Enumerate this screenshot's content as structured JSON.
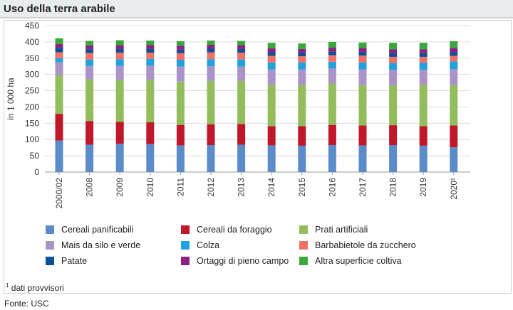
{
  "title": "Uso della terra arabile",
  "footnote": "dati provvisori",
  "footnote_mark": "1",
  "source": "Fonte: USC",
  "chart_data": {
    "type": "bar",
    "stacked": true,
    "ylabel": "in 1 000 ha",
    "ylim": [
      0,
      450
    ],
    "yticks": [
      0,
      50,
      100,
      150,
      200,
      250,
      300,
      350,
      400,
      450
    ],
    "grid": true,
    "categories": [
      "2000/02",
      "2008",
      "2009",
      "2010",
      "2011",
      "2012",
      "2013",
      "2014",
      "2015",
      "2016",
      "2017",
      "2018",
      "2019",
      "2020¹"
    ],
    "series": [
      {
        "name": "Cereali panificabili",
        "color": "#5b8bc9",
        "values": [
          97,
          84,
          87,
          86,
          82,
          83,
          84,
          82,
          81,
          83,
          82,
          83,
          81,
          76
        ]
      },
      {
        "name": "Cereali da foraggio",
        "color": "#c0182a",
        "values": [
          82,
          73,
          67,
          67,
          63,
          64,
          64,
          59,
          60,
          62,
          61,
          61,
          60,
          67
        ]
      },
      {
        "name": "Prati artificiali",
        "color": "#93bd5c",
        "values": [
          118,
          128,
          129,
          130,
          133,
          133,
          132,
          127,
          126,
          127,
          124,
          123,
          127,
          124
        ]
      },
      {
        "name": "Mais da silo e verde",
        "color": "#a993c7",
        "values": [
          40,
          41,
          43,
          44,
          46,
          45,
          44,
          47,
          48,
          46,
          48,
          47,
          46,
          49
        ]
      },
      {
        "name": "Colza",
        "color": "#22a1dc",
        "values": [
          13,
          20,
          21,
          21,
          21,
          22,
          22,
          22,
          22,
          21,
          22,
          21,
          22,
          24
        ]
      },
      {
        "name": "Barbabietole da zucchero",
        "color": "#ef7167",
        "values": [
          18,
          20,
          20,
          19,
          20,
          21,
          21,
          20,
          19,
          20,
          21,
          19,
          18,
          17
        ]
      },
      {
        "name": "Patate",
        "color": "#0b5294",
        "values": [
          14,
          11,
          11,
          11,
          11,
          11,
          11,
          11,
          10,
          11,
          11,
          11,
          11,
          11
        ]
      },
      {
        "name": "Ortaggi di pieno campo",
        "color": "#8b2282",
        "values": [
          11,
          12,
          12,
          12,
          12,
          12,
          12,
          12,
          12,
          12,
          12,
          12,
          12,
          13
        ]
      },
      {
        "name": "Altra superficie coltiva",
        "color": "#3aa73c",
        "values": [
          18,
          14,
          15,
          14,
          14,
          13,
          13,
          17,
          17,
          18,
          17,
          20,
          20,
          21
        ]
      }
    ]
  }
}
